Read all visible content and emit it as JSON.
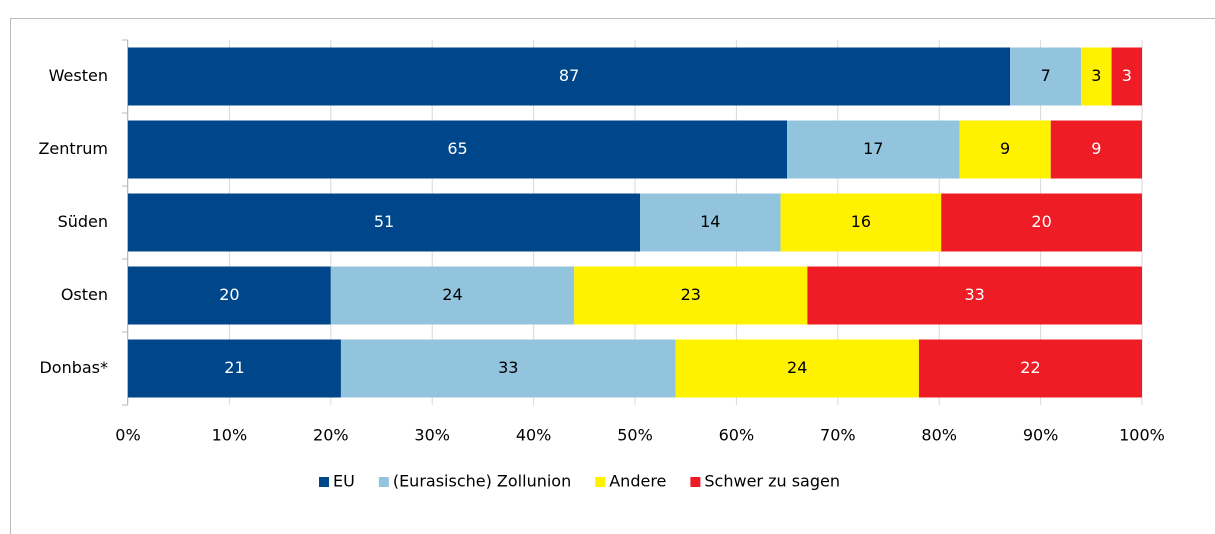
{
  "chart_data": {
    "type": "stacked_barh",
    "categories": [
      "Westen",
      "Zentrum",
      "Süden",
      "Osten",
      "Donbas*"
    ],
    "series": [
      {
        "name": "EU",
        "color": "#00468b",
        "label_color": "#ffffff",
        "values": [
          87,
          65,
          51,
          20,
          21
        ]
      },
      {
        "name": "(Eurasische) Zollunion",
        "color": "#93c4dd",
        "label_color": "#000000",
        "values": [
          7,
          17,
          14,
          24,
          33
        ]
      },
      {
        "name": "Andere",
        "color": "#fff200",
        "label_color": "#000000",
        "values": [
          3,
          9,
          16,
          23,
          24
        ]
      },
      {
        "name": "Schwer zu sagen",
        "color": "#ee1c25",
        "label_color": "#ffffff",
        "values": [
          3,
          9,
          20,
          33,
          22
        ]
      }
    ],
    "xlim": [
      0,
      100
    ],
    "xticks": [
      {
        "value": 0,
        "label": "0%"
      },
      {
        "value": 10,
        "label": "10%"
      },
      {
        "value": 20,
        "label": "20%"
      },
      {
        "value": 30,
        "label": "30%"
      },
      {
        "value": 40,
        "label": "40%"
      },
      {
        "value": 50,
        "label": "50%"
      },
      {
        "value": 60,
        "label": "60%"
      },
      {
        "value": 70,
        "label": "70%"
      },
      {
        "value": 80,
        "label": "80%"
      },
      {
        "value": 90,
        "label": "90%"
      },
      {
        "value": 100,
        "label": "100%"
      }
    ],
    "grid": true,
    "legend": "bottom"
  }
}
